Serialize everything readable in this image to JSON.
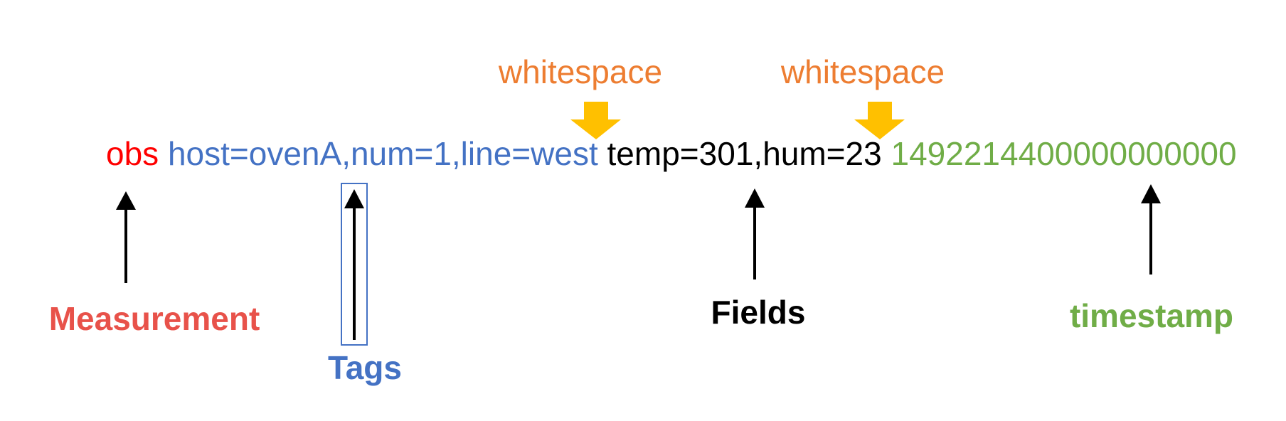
{
  "colors": {
    "measurement": "#ff0000",
    "measurement_label": "#e8524a",
    "tags": "#4472c4",
    "fields": "#000000",
    "timestamp": "#70ad47",
    "whitespace": "#ed7d31",
    "whitespace_arrow": "#ffc000",
    "arrow": "#000000"
  },
  "line_protocol": {
    "measurement": "obs",
    "tags": "host=ovenA,num=1,line=west",
    "fields": "temp=301,hum=23",
    "timestamp": "1492214400000000000"
  },
  "whitespace_labels": [
    "whitespace",
    "whitespace"
  ],
  "labels": {
    "measurement": "Measurement",
    "tags": "Tags",
    "fields": "Fields",
    "timestamp": "timestamp"
  },
  "icons": {
    "whitespace_pointer": "down-arrow-icon",
    "component_pointer": "up-arrow-icon"
  }
}
